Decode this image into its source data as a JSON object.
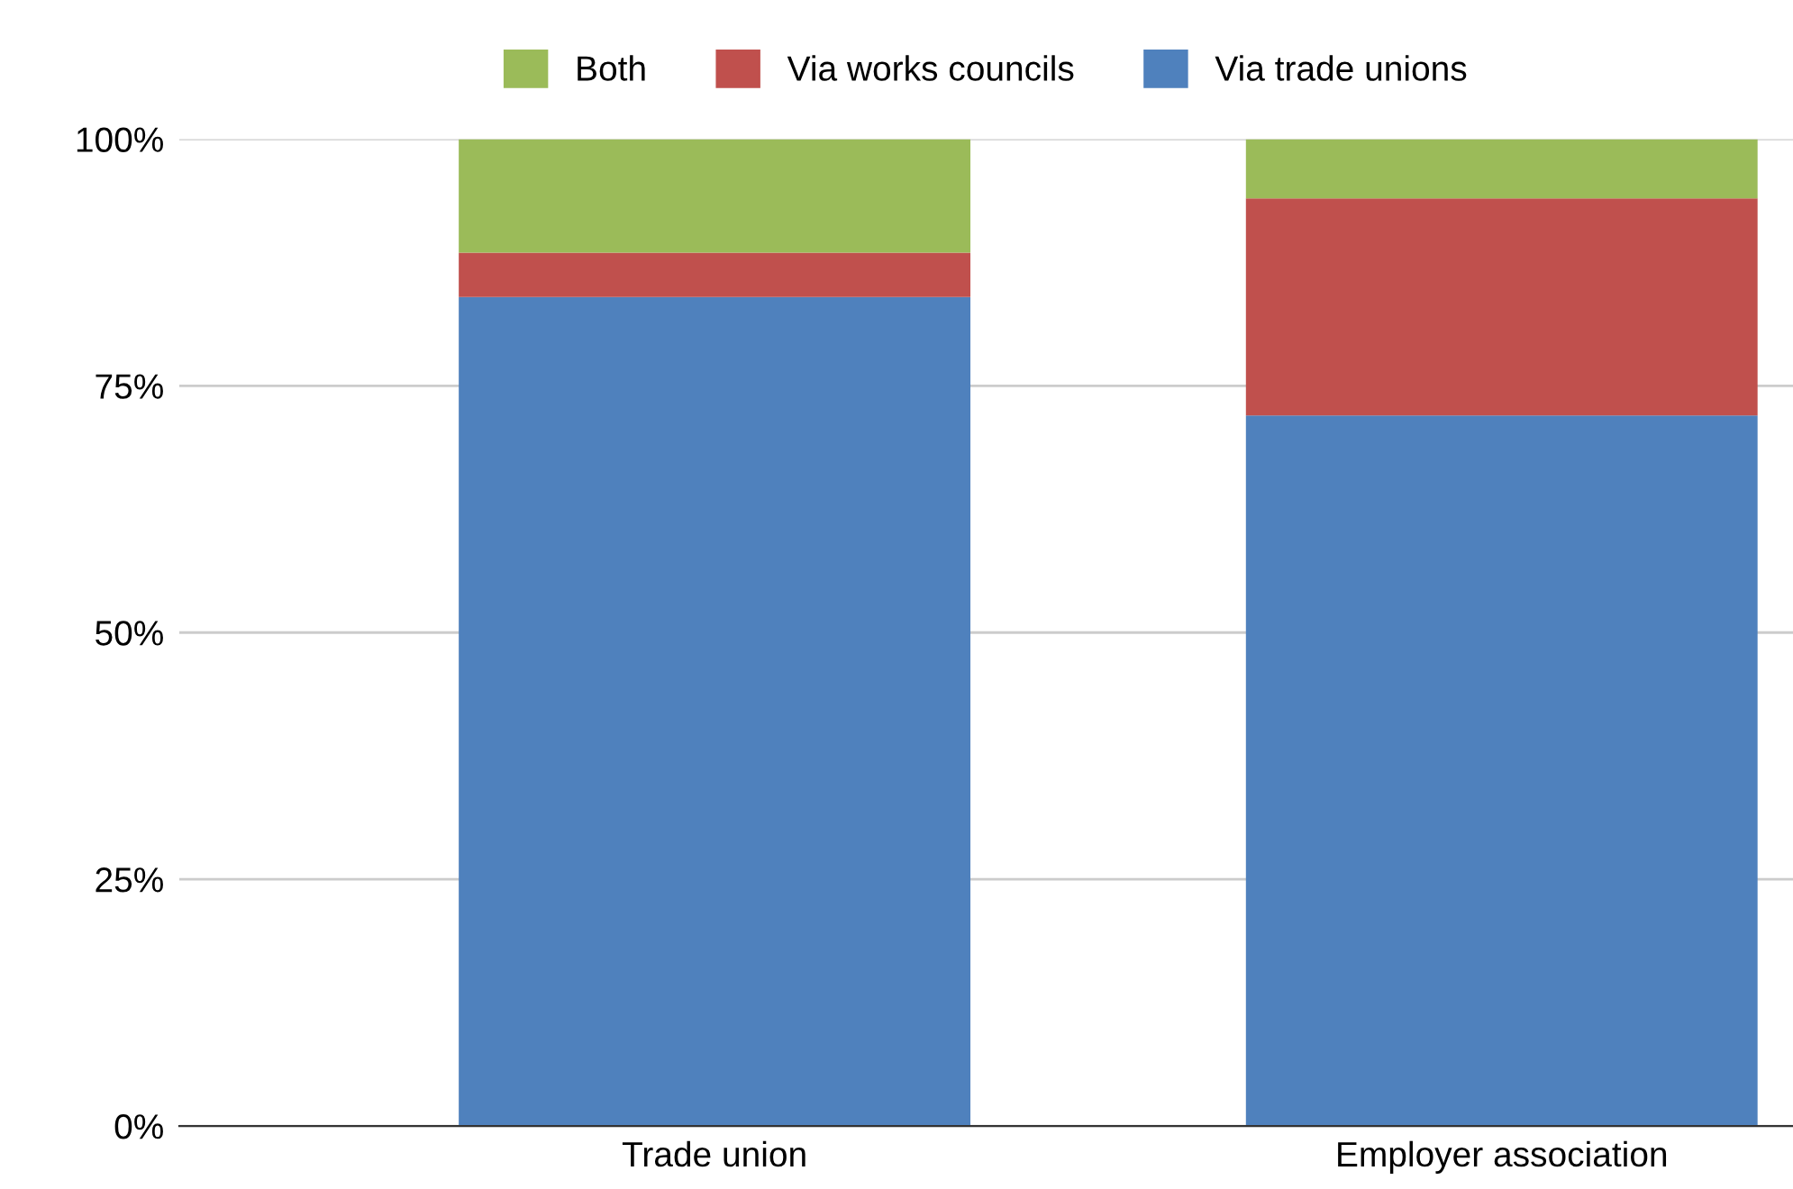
{
  "chart_data": {
    "type": "bar",
    "stacked": true,
    "categories": [
      "Trade union",
      "Employer association"
    ],
    "series": [
      {
        "name": "Via trade unions",
        "color": "#4f81bd",
        "values": [
          84,
          72
        ]
      },
      {
        "name": "Via works councils",
        "color": "#c0504d",
        "values": [
          4.5,
          22
        ]
      },
      {
        "name": "Both",
        "color": "#9bbb59",
        "values": [
          11.5,
          6
        ]
      }
    ],
    "ylim": [
      0,
      100
    ],
    "yticks": [
      {
        "value": 0,
        "label": "0%"
      },
      {
        "value": 25,
        "label": "25%"
      },
      {
        "value": 50,
        "label": "50%"
      },
      {
        "value": 75,
        "label": "75%"
      },
      {
        "value": 100,
        "label": "100%"
      }
    ],
    "grid": "y",
    "legend": "top"
  }
}
